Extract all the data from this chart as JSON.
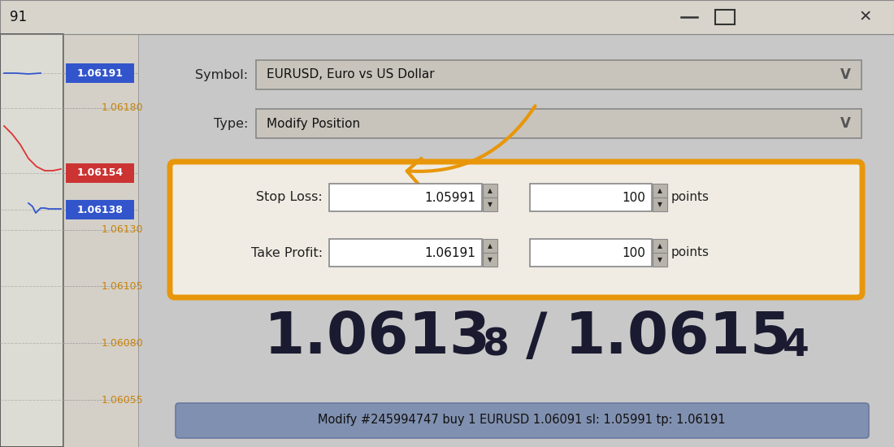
{
  "bg_color": "#c8c8c8",
  "title_bar_bg": "#d8d4cc",
  "title_bar_text": "91",
  "window_bg": "#c8c8c8",
  "chart_bg": "#e8e8e0",
  "chart_border": "#444444",
  "price_labels": [
    "1.06191",
    "1.06180",
    "1.06154",
    "1.06138",
    "1.06130",
    "1.06105",
    "1.06080",
    "1.06055"
  ],
  "price_label_color": "#c8820a",
  "price_y_positions": [
    90,
    133,
    213,
    258,
    283,
    352,
    422,
    492
  ],
  "highlighted": {
    "1.06191": "#3355cc",
    "1.06154": "#cc3333",
    "1.06138": "#3355cc"
  },
  "symbol_label": "Symbol:",
  "symbol_value": "EURUSD, Euro vs US Dollar",
  "type_label": "Type:",
  "type_value": "Modify Position",
  "dropdown_bg": "#c8c4bc",
  "dropdown_border": "#888888",
  "chevron": "V",
  "highlight_box_color": "#e8960a",
  "highlight_box_bg": "#f0ece4",
  "stop_loss_label": "Stop Loss:",
  "stop_loss_value": "1.05991",
  "stop_loss_points": "100",
  "take_profit_label": "Take Profit:",
  "take_profit_value": "1.06191",
  "take_profit_points": "100",
  "points_label": "points",
  "price_big1": "1.0613",
  "price_small1": "8",
  "price_slash": " / ",
  "price_big2": "1.0615",
  "price_small2": "4",
  "price_color": "#1a1a30",
  "status_bar_text": "Modify #245994747 buy 1 EURUSD 1.06091 sl: 1.05991 tp: 1.06191",
  "status_bar_bg": "#8090b0",
  "arrow_color": "#e8960a",
  "input_bg": "#ffffff",
  "input_border": "#888888",
  "spin_bg": "#b8b4ac",
  "label_color": "#222222"
}
